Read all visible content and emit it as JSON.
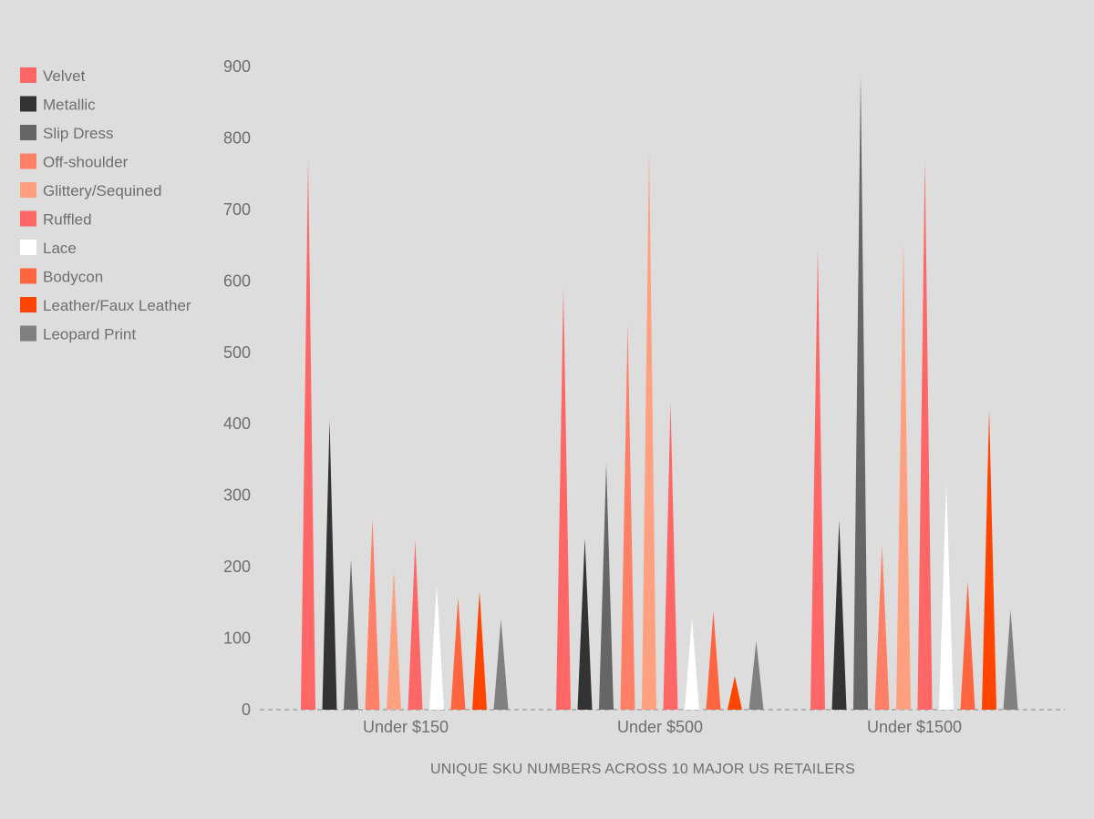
{
  "chart_data": {
    "type": "bar",
    "mark_shape": "spike",
    "title": "",
    "xlabel": "UNIQUE SKU NUMBERS ACROSS 10 MAJOR US RETAILERS",
    "ylabel": "",
    "ylim": [
      0,
      900
    ],
    "yticks": [
      0,
      100,
      200,
      300,
      400,
      500,
      600,
      700,
      800,
      900
    ],
    "grid": false,
    "baseline_style": "dashed",
    "legend_position": "top-left",
    "categories": [
      "Under $150",
      "Under $500",
      "Under $1500"
    ],
    "series": [
      {
        "name": "Velvet",
        "color": "#ff6666",
        "values": [
          770,
          590,
          645
        ]
      },
      {
        "name": "Metallic",
        "color": "#333333",
        "values": [
          405,
          240,
          265
        ]
      },
      {
        "name": "Slip Dress",
        "color": "#666666",
        "values": [
          210,
          345,
          890
        ]
      },
      {
        "name": "Off-shoulder",
        "color": "#ff8066",
        "values": [
          268,
          540,
          230
        ]
      },
      {
        "name": "Glittery/Sequined",
        "color": "#ffa080",
        "values": [
          195,
          785,
          655
        ]
      },
      {
        "name": "Ruffled",
        "color": "#ff6666",
        "values": [
          237,
          430,
          770
        ]
      },
      {
        "name": "Lace",
        "color": "#ffffff",
        "values": [
          175,
          128,
          318
        ]
      },
      {
        "name": "Bodycon",
        "color": "#ff6640",
        "values": [
          157,
          138,
          180
        ]
      },
      {
        "name": "Leather/Faux Leather",
        "color": "#ff4500",
        "values": [
          166,
          47,
          420
        ]
      },
      {
        "name": "Leopard Print",
        "color": "#808080",
        "values": [
          127,
          96,
          140
        ]
      }
    ]
  }
}
